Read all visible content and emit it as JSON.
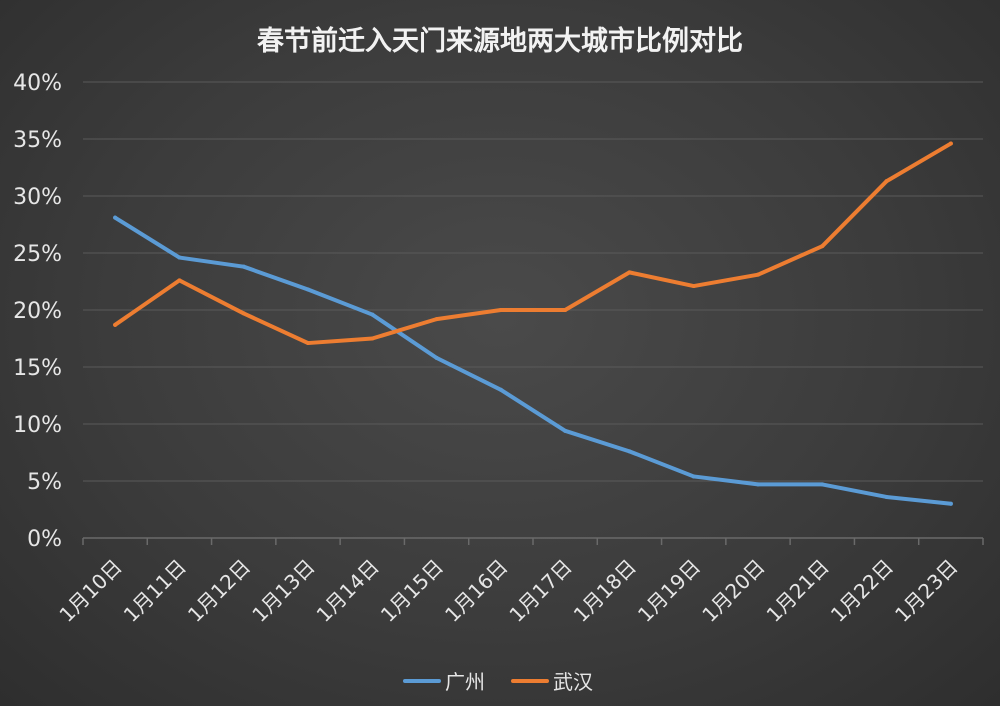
{
  "chart_data": {
    "type": "line",
    "title": "春节前迁入天门来源地两大城市比例对比",
    "categories": [
      "1月10日",
      "1月11日",
      "1月12日",
      "1月13日",
      "1月14日",
      "1月15日",
      "1月16日",
      "1月17日",
      "1月18日",
      "1月19日",
      "1月20日",
      "1月21日",
      "1月22日",
      "1月23日"
    ],
    "series": [
      {
        "name": "广州",
        "color": "#5b9bd5",
        "values": [
          28.1,
          24.6,
          23.8,
          21.8,
          19.6,
          15.8,
          13.0,
          9.4,
          7.6,
          5.4,
          4.7,
          4.7,
          3.6,
          3.0
        ]
      },
      {
        "name": "武汉",
        "color": "#ed7d31",
        "values": [
          18.7,
          22.6,
          19.7,
          17.1,
          17.5,
          19.2,
          20.0,
          20.0,
          23.3,
          22.1,
          23.1,
          25.6,
          31.3,
          34.6
        ]
      }
    ],
    "ylim": [
      0,
      40
    ],
    "yticks": [
      0,
      5,
      10,
      15,
      20,
      25,
      30,
      35,
      40
    ],
    "ytick_labels": [
      "0%",
      "5%",
      "10%",
      "15%",
      "20%",
      "25%",
      "30%",
      "35%",
      "40%"
    ],
    "xlabel": "",
    "ylabel": "",
    "grid": true,
    "legend_position": "bottom"
  }
}
